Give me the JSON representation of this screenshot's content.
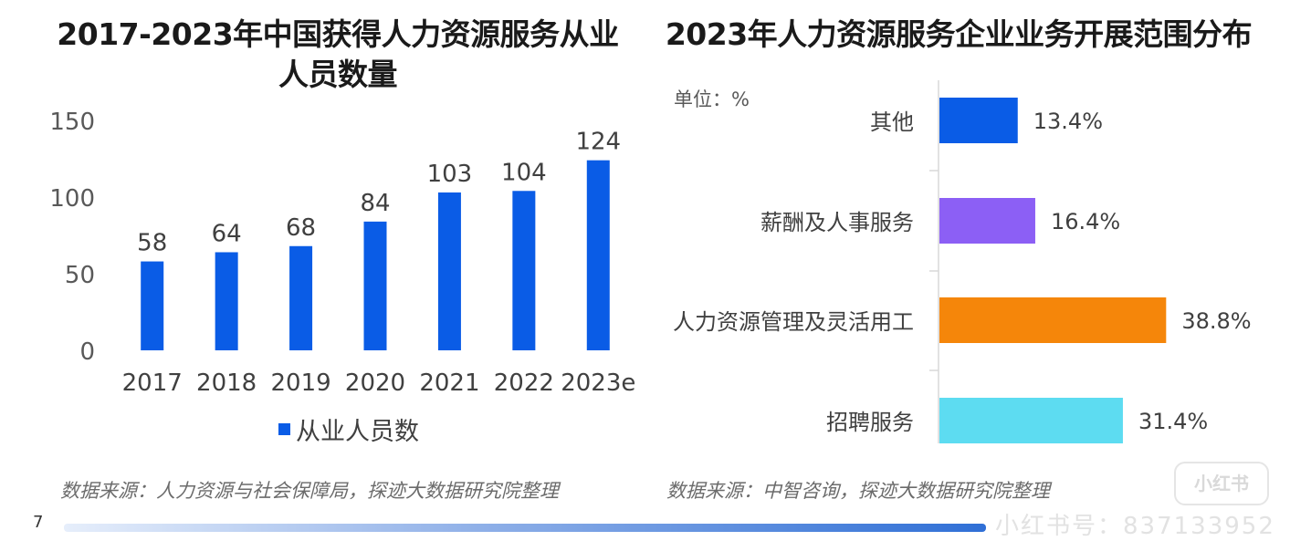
{
  "left_chart": {
    "title": "2017-2023年中国获得人力资源服务从业人员数量",
    "source": "数据来源：人力资源与社会保障局，探迹大数据研究院整理"
  },
  "right_chart": {
    "title": "2023年人力资源服务企业业务开展范围分布",
    "unit": "单位：%",
    "source": "数据来源：中智咨询，探迹大数据研究院整理"
  },
  "page_number": "7",
  "watermark": {
    "badge": "小红书",
    "text": "小红书号：837133952"
  },
  "colors": {
    "bar_blue": "#0a5ce6",
    "other": "#0a5ce6",
    "payroll": "#8c5ff5",
    "hr_mgmt": "#f5860a",
    "recruit": "#5ddcf1"
  },
  "chart_data": [
    {
      "type": "bar",
      "title": "2017-2023年中国获得人力资源服务从业人员数量",
      "categories": [
        "2017",
        "2018",
        "2019",
        "2020",
        "2021",
        "2022",
        "2023e"
      ],
      "series": [
        {
          "name": "从业人员数",
          "values": [
            58,
            64,
            68,
            84,
            103,
            104,
            124
          ]
        }
      ],
      "data_labels": [
        "58",
        "64",
        "68",
        "84",
        "103",
        "104",
        "124"
      ],
      "ylim": [
        0,
        150
      ],
      "yticks": [
        0,
        50,
        100,
        150
      ],
      "ytick_labels": [
        "0",
        "50",
        "100",
        "150"
      ],
      "grid": false,
      "legend": "bottom"
    },
    {
      "type": "bar",
      "orientation": "horizontal",
      "title": "2023年人力资源服务企业业务开展范围分布",
      "unit": "单位：%",
      "categories": [
        "其他",
        "薪酬及人事服务",
        "人力资源管理及灵活用工",
        "招聘服务"
      ],
      "values": [
        13.4,
        16.4,
        38.8,
        31.4
      ],
      "data_labels": [
        "13.4%",
        "16.4%",
        "38.8%",
        "31.4%"
      ],
      "bar_colors": [
        "#0a5ce6",
        "#8c5ff5",
        "#f5860a",
        "#5ddcf1"
      ],
      "grid": false
    }
  ]
}
